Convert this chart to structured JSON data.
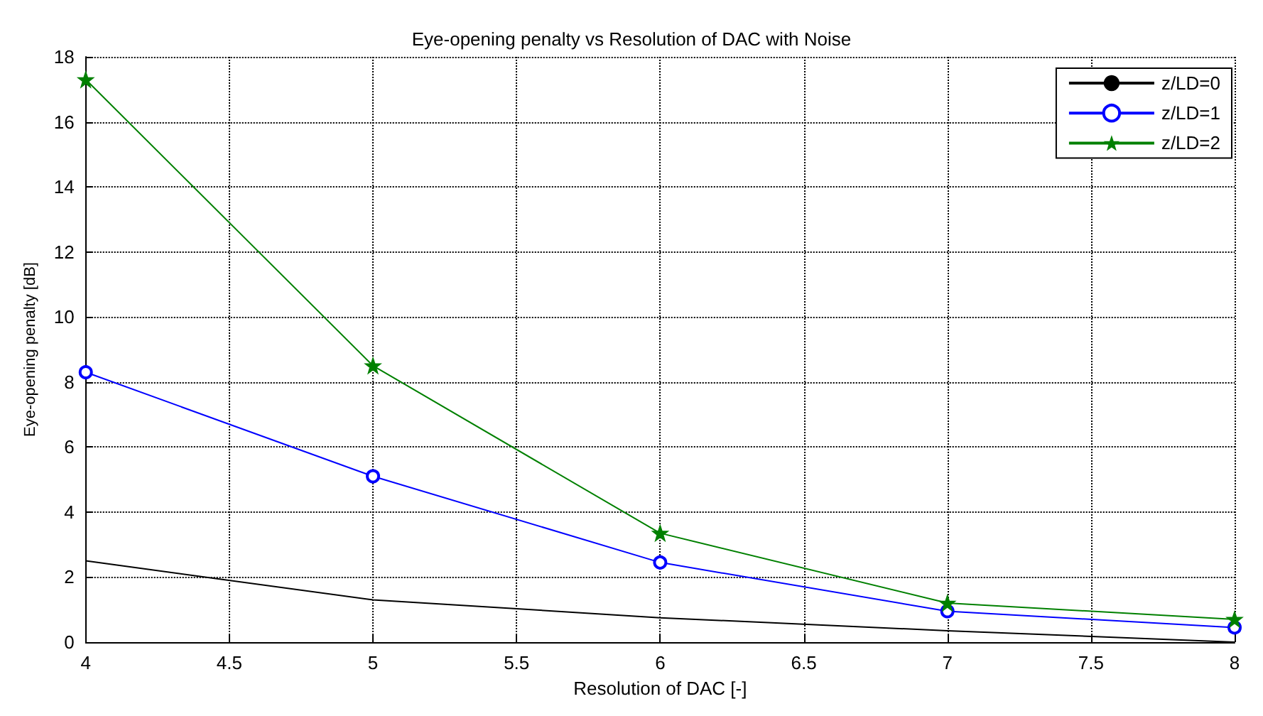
{
  "chart_data": {
    "type": "line",
    "title": "Eye-opening penalty vs Resolution of DAC with Noise",
    "xlabel": "Resolution of DAC [-]",
    "ylabel": "Eye-opening penalty [dB]",
    "x": [
      4,
      5,
      6,
      7,
      8
    ],
    "series": [
      {
        "name": "z/LD=0",
        "color": "#000000",
        "marker": "none",
        "values": [
          2.5,
          1.3,
          0.75,
          0.35,
          0
        ]
      },
      {
        "name": "z/LD=1",
        "color": "#0000ff",
        "marker": "circle",
        "values": [
          8.3,
          5.1,
          2.45,
          0.95,
          0.45
        ]
      },
      {
        "name": "z/LD=2",
        "color": "#008000",
        "marker": "star",
        "values": [
          17.3,
          8.5,
          3.35,
          1.2,
          0.7
        ]
      }
    ],
    "xlim": [
      4,
      8
    ],
    "xticks": [
      4,
      4.5,
      5,
      5.5,
      6,
      6.5,
      7,
      7.5,
      8
    ],
    "ylim": [
      0,
      18
    ],
    "yticks": [
      0,
      2,
      4,
      6,
      8,
      10,
      12,
      14,
      16,
      18
    ],
    "grid": true,
    "legend": "top right",
    "line_style": "solid"
  }
}
